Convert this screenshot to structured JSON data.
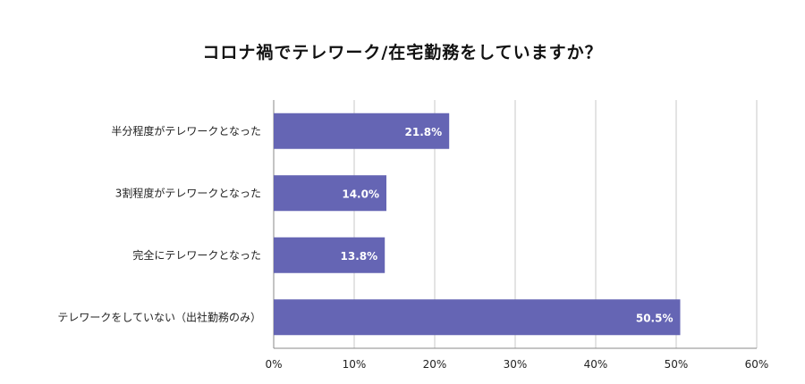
{
  "chart_data": {
    "type": "bar",
    "orientation": "horizontal",
    "title": "コロナ禍でテレワーク/在宅勤務をしていますか？",
    "categories": [
      "半分程度がテレワークとなった",
      "3割程度がテレワークとなった",
      "完全にテレワークとなった",
      "テレワークをしていない（出社勤務のみ）"
    ],
    "values": [
      21.8,
      14.0,
      13.8,
      50.5
    ],
    "value_labels": [
      "21.8%",
      "14.0%",
      "13.8%",
      "50.5%"
    ],
    "xlim": [
      0,
      60
    ],
    "xticks": [
      0,
      10,
      20,
      30,
      40,
      50,
      60
    ],
    "xtick_labels": [
      "0%",
      "10%",
      "20%",
      "30%",
      "40%",
      "50%",
      "60%"
    ],
    "xlabel": "",
    "ylabel": "",
    "grid": true,
    "legend": "none",
    "colors": {
      "bar": "#6565b4",
      "grid": "#c8c8c8",
      "axis": "#888888"
    }
  }
}
